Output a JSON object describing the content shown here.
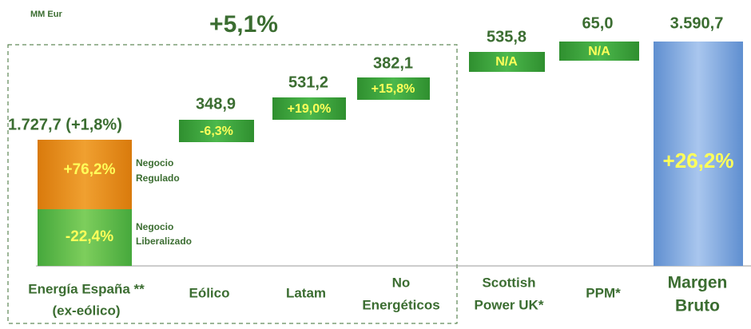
{
  "header": {
    "unit": "MM  Eur",
    "group_change": "+5,1%"
  },
  "items": [
    {
      "name": [
        "Energía España **",
        "(ex-eólico)"
      ],
      "value": "1.727,7 (+1,8%)",
      "parts": [
        {
          "change": "+76,2%",
          "label": [
            "Negocio",
            "Regulado"
          ]
        },
        {
          "change": "-22,4%",
          "label": [
            "Negocio",
            "Liberalizado"
          ]
        }
      ]
    },
    {
      "name": [
        "Eólico"
      ],
      "value": "348,9",
      "change": "-6,3%"
    },
    {
      "name": [
        "Latam"
      ],
      "value": "531,2",
      "change": "+19,0%"
    },
    {
      "name": [
        "No",
        "Energéticos"
      ],
      "value": "382,1",
      "change": "+15,8%"
    },
    {
      "name": [
        "Scottish",
        "Power UK*"
      ],
      "value": "535,8",
      "change": "N/A"
    },
    {
      "name": [
        "PPM*"
      ],
      "value": "65,0",
      "change": "N/A"
    },
    {
      "name": [
        "Margen",
        "Bruto"
      ],
      "value": "3.590,7",
      "change": "+26,2%"
    }
  ]
}
